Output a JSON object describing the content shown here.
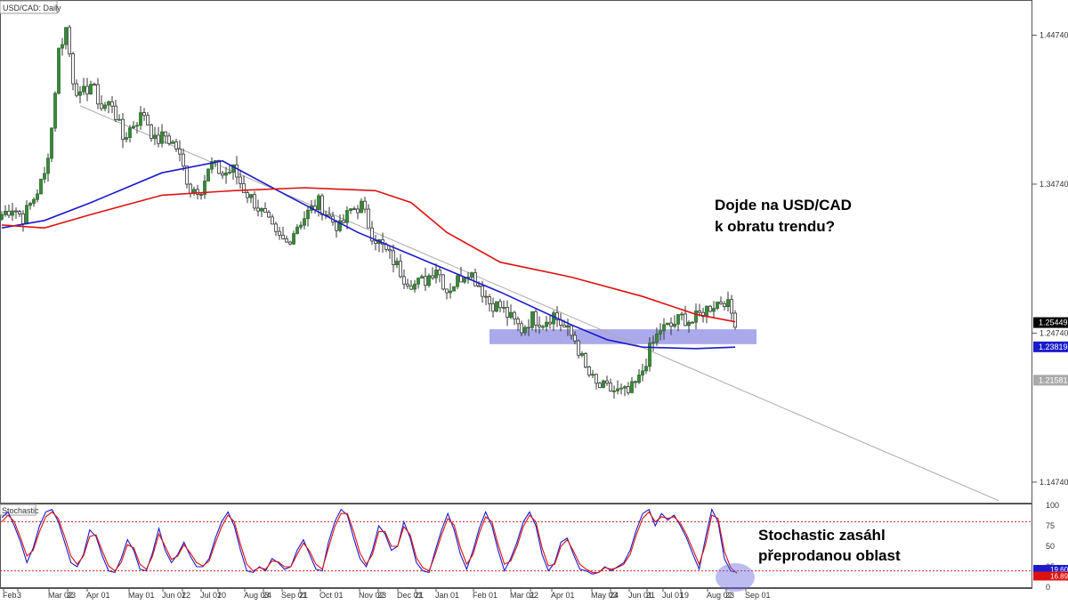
{
  "chart_data": [
    {
      "type": "candlestick",
      "title": "USD/CAD: Daily",
      "price_axis": {
        "ticks": [
          "1.44740",
          "1.34740",
          "1.24740",
          "1.14740"
        ],
        "ylim": [
          1.133,
          1.471
        ]
      },
      "x_axis": {
        "labels": [
          "Feb",
          "3",
          "Mar 02",
          "23",
          "Apr 01",
          "May 01",
          "Jun 01",
          "22",
          "Jul 01",
          "20",
          "Aug 03",
          "24",
          "Sep 01",
          "21",
          "Oct 01",
          "Nov 02",
          "23",
          "Dec 01",
          "21",
          "Jan 01",
          "Feb 01",
          "Mar 01",
          "22",
          "Apr 01",
          "May 03",
          "24",
          "Jun 01",
          "21",
          "Jul 01",
          "19",
          "Aug 02",
          "23",
          "Sep 01"
        ]
      },
      "price_labels": [
        {
          "name": "last_price",
          "value": "1.25449",
          "color": "#000000"
        },
        {
          "name": "blue_ma_value",
          "value": "1.23819",
          "color": "#1a1acc"
        },
        {
          "name": "trendline_value",
          "value": "1.21581",
          "color": "#aaaaaa"
        }
      ],
      "close_path": [
        [
          0,
          1.327
        ],
        [
          3,
          1.332
        ],
        [
          6,
          1.325
        ],
        [
          9,
          1.338
        ],
        [
          12,
          1.353
        ],
        [
          14,
          1.385
        ],
        [
          16,
          1.437
        ],
        [
          18,
          1.452
        ],
        [
          20,
          1.418
        ],
        [
          22,
          1.405
        ],
        [
          25,
          1.415
        ],
        [
          28,
          1.399
        ],
        [
          31,
          1.402
        ],
        [
          34,
          1.378
        ],
        [
          37,
          1.388
        ],
        [
          40,
          1.395
        ],
        [
          43,
          1.376
        ],
        [
          46,
          1.38
        ],
        [
          49,
          1.372
        ],
        [
          53,
          1.344
        ],
        [
          56,
          1.345
        ],
        [
          59,
          1.361
        ],
        [
          62,
          1.354
        ],
        [
          65,
          1.357
        ],
        [
          68,
          1.344
        ],
        [
          71,
          1.335
        ],
        [
          74,
          1.325
        ],
        [
          77,
          1.312
        ],
        [
          80,
          1.308
        ],
        [
          83,
          1.32
        ],
        [
          86,
          1.328
        ],
        [
          89,
          1.335
        ],
        [
          92,
          1.325
        ],
        [
          95,
          1.318
        ],
        [
          98,
          1.33
        ],
        [
          101,
          1.333
        ],
        [
          104,
          1.314
        ],
        [
          107,
          1.305
        ],
        [
          110,
          1.296
        ],
        [
          113,
          1.285
        ],
        [
          116,
          1.28
        ],
        [
          119,
          1.283
        ],
        [
          122,
          1.292
        ],
        [
          125,
          1.276
        ],
        [
          128,
          1.283
        ],
        [
          131,
          1.29
        ],
        [
          134,
          1.28
        ],
        [
          137,
          1.268
        ],
        [
          140,
          1.265
        ],
        [
          143,
          1.257
        ],
        [
          146,
          1.25
        ],
        [
          149,
          1.258
        ],
        [
          152,
          1.255
        ],
        [
          155,
          1.26
        ],
        [
          158,
          1.251
        ],
        [
          161,
          1.243
        ],
        [
          164,
          1.223
        ],
        [
          167,
          1.212
        ],
        [
          170,
          1.21
        ],
        [
          173,
          1.208
        ],
        [
          176,
          1.207
        ],
        [
          179,
          1.216
        ],
        [
          182,
          1.236
        ],
        [
          185,
          1.25
        ],
        [
          188,
          1.252
        ],
        [
          191,
          1.258
        ],
        [
          194,
          1.255
        ],
        [
          197,
          1.262
        ],
        [
          200,
          1.267
        ],
        [
          203,
          1.27
        ],
        [
          206,
          1.256
        ]
      ],
      "series": [
        {
          "name": "blue_ma",
          "color": "#1a1acc",
          "points": [
            [
              0,
              1.318
            ],
            [
              12,
              1.323
            ],
            [
              25,
              1.335
            ],
            [
              45,
              1.355
            ],
            [
              62,
              1.363
            ],
            [
              80,
              1.34
            ],
            [
              100,
              1.315
            ],
            [
              120,
              1.295
            ],
            [
              140,
              1.275
            ],
            [
              160,
              1.253
            ],
            [
              170,
              1.243
            ],
            [
              180,
              1.238
            ],
            [
              195,
              1.237
            ],
            [
              206,
              1.238
            ]
          ]
        },
        {
          "name": "red_ma",
          "color": "#dd1111",
          "points": [
            [
              0,
              1.32
            ],
            [
              12,
              1.318
            ],
            [
              25,
              1.327
            ],
            [
              45,
              1.34
            ],
            [
              65,
              1.343
            ],
            [
              85,
              1.345
            ],
            [
              105,
              1.343
            ],
            [
              115,
              1.335
            ],
            [
              125,
              1.315
            ],
            [
              140,
              1.295
            ],
            [
              160,
              1.285
            ],
            [
              180,
              1.272
            ],
            [
              195,
              1.26
            ],
            [
              206,
              1.255
            ]
          ]
        },
        {
          "name": "trendline",
          "color": "#aaaaaa",
          "points": [
            [
              22,
              1.4
            ],
            [
              280,
              1.135
            ]
          ]
        }
      ],
      "support_zone": {
        "from": 1.24,
        "to": 1.25,
        "x_start": 137,
        "x_end": 212,
        "color": "#9a9ae8"
      },
      "annotation": [
        "Dojde na USD/CAD",
        "k obratu trendu?"
      ]
    },
    {
      "type": "line",
      "title": "Stochastic",
      "ylim": [
        0,
        100
      ],
      "y_ticks": [
        "100",
        "75",
        "50",
        "25",
        "0"
      ],
      "levels": [
        80,
        20
      ],
      "value_labels": [
        "19.60",
        "16.89"
      ],
      "series": [
        {
          "name": "k",
          "color": "#1a1acc",
          "values": [
            85,
            92,
            75,
            55,
            30,
            48,
            75,
            92,
            95,
            80,
            55,
            30,
            25,
            40,
            70,
            62,
            38,
            20,
            18,
            35,
            58,
            45,
            22,
            20,
            42,
            72,
            45,
            30,
            40,
            55,
            38,
            25,
            25,
            35,
            60,
            80,
            92,
            75,
            45,
            20,
            18,
            25,
            20,
            35,
            30,
            22,
            25,
            45,
            58,
            40,
            22,
            20,
            55,
            80,
            95,
            88,
            60,
            35,
            25,
            45,
            75,
            65,
            45,
            50,
            80,
            60,
            30,
            20,
            18,
            45,
            70,
            90,
            70,
            40,
            22,
            45,
            72,
            92,
            75,
            45,
            20,
            35,
            55,
            80,
            92,
            75,
            40,
            20,
            30,
            55,
            60,
            40,
            22,
            20,
            16,
            18,
            25,
            20,
            25,
            30,
            45,
            70,
            90,
            95,
            75,
            90,
            82,
            88,
            75,
            60,
            40,
            22,
            60,
            95,
            80,
            35,
            20,
            18
          ]
        },
        {
          "name": "d",
          "color": "#dd1111",
          "values": [
            80,
            88,
            80,
            60,
            38,
            45,
            68,
            86,
            92,
            84,
            62,
            38,
            28,
            38,
            62,
            64,
            44,
            26,
            20,
            30,
            52,
            48,
            28,
            22,
            38,
            65,
            50,
            34,
            38,
            52,
            42,
            30,
            26,
            32,
            54,
            74,
            88,
            80,
            52,
            28,
            20,
            24,
            22,
            32,
            31,
            25,
            25,
            40,
            54,
            44,
            28,
            22,
            48,
            74,
            90,
            90,
            68,
            42,
            28,
            40,
            68,
            68,
            50,
            50,
            74,
            64,
            36,
            24,
            20,
            40,
            64,
            84,
            76,
            48,
            28,
            40,
            66,
            86,
            80,
            52,
            28,
            32,
            50,
            74,
            88,
            80,
            48,
            26,
            28,
            50,
            58,
            44,
            28,
            22,
            18,
            18,
            24,
            22,
            24,
            28,
            40,
            64,
            84,
            92,
            80,
            86,
            84,
            86,
            78,
            64,
            46,
            28,
            52,
            88,
            84,
            44,
            24,
            17
          ]
        }
      ],
      "annotation": [
        "Stochastic zasáhl",
        "přeprodanou oblast"
      ]
    }
  ]
}
